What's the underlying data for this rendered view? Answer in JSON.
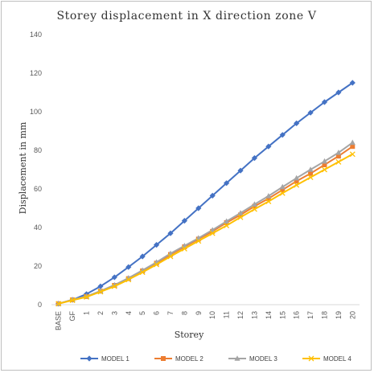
{
  "chart_data": {
    "type": "line",
    "title": "Storey displacement  in X direction zone V",
    "xlabel": "Storey",
    "ylabel": "Displacement in mm",
    "categories": [
      "BASE",
      "GF",
      "1",
      "2",
      "3",
      "4",
      "5",
      "6",
      "7",
      "8",
      "9",
      "10",
      "11",
      "12",
      "13",
      "14",
      "15",
      "16",
      "17",
      "18",
      "19",
      "20"
    ],
    "ylim": [
      0,
      140
    ],
    "yticks": [
      0,
      20,
      40,
      60,
      80,
      100,
      120,
      140
    ],
    "grid": false,
    "legend_position": "bottom",
    "series": [
      {
        "name": "MODEL 1",
        "color": "#4472c4",
        "marker": "diamond",
        "values": [
          0.5,
          2.5,
          5.5,
          9.5,
          14.2,
          19.5,
          25,
          31,
          37,
          43.5,
          50,
          56.5,
          63,
          69.5,
          76,
          82,
          88,
          94,
          99.5,
          105,
          110,
          115
        ]
      },
      {
        "name": "MODEL 2",
        "color": "#ed7d31",
        "marker": "square",
        "values": [
          0.5,
          2.5,
          4.2,
          7,
          10,
          13.5,
          17.5,
          21.5,
          26,
          30,
          34,
          38,
          42.5,
          46.5,
          51,
          55,
          59.5,
          64,
          68,
          72.5,
          77,
          82
        ]
      },
      {
        "name": "MODEL 3",
        "color": "#a5a5a5",
        "marker": "triangle",
        "values": [
          0.5,
          2.6,
          4.3,
          7.1,
          10.2,
          13.8,
          17.8,
          22,
          26.5,
          30.5,
          34.5,
          38.7,
          43.2,
          47.5,
          52,
          56.3,
          61,
          65.6,
          70,
          74.3,
          78.8,
          84
        ]
      },
      {
        "name": "MODEL 4",
        "color": "#ffc000",
        "marker": "x",
        "values": [
          0.5,
          2.3,
          4,
          6.7,
          9.5,
          13,
          16.8,
          20.8,
          25,
          29,
          33,
          37,
          41,
          45.3,
          49.5,
          53.5,
          57.8,
          62,
          66,
          70,
          74,
          78
        ]
      }
    ]
  }
}
